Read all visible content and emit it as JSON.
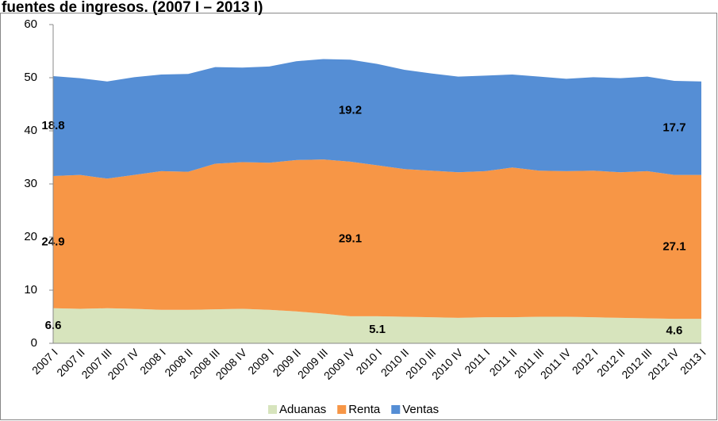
{
  "chart_data": {
    "type": "stacked-area",
    "title": "fuentes de ingresos. (2007 I – 2013 I)",
    "categories": [
      "2007 I",
      "2007 II",
      "2007 III",
      "2007 IV",
      "2008 I",
      "2008 II",
      "2008 III",
      "2008 IV",
      "2009 I",
      "2009 II",
      "2009 III",
      "2009 IV",
      "2010 I",
      "2010 II",
      "2010 III",
      "2010 IV",
      "2011 I",
      "2011 II",
      "2011 III",
      "2011 IV",
      "2012 I",
      "2012 II",
      "2012 III",
      "2012 IV",
      "2013 I"
    ],
    "series": [
      {
        "name": "Aduanas",
        "color": "#d7e4bd",
        "values": [
          6.6,
          6.5,
          6.6,
          6.5,
          6.3,
          6.3,
          6.4,
          6.5,
          6.3,
          6.0,
          5.6,
          5.1,
          5.1,
          5.0,
          4.9,
          4.8,
          4.9,
          4.9,
          5.0,
          5.0,
          4.9,
          4.8,
          4.7,
          4.6,
          4.6
        ],
        "value_labels": [
          "6.6",
          null,
          null,
          null,
          null,
          null,
          null,
          null,
          null,
          null,
          null,
          null,
          "5.1",
          null,
          null,
          null,
          null,
          null,
          null,
          null,
          null,
          null,
          null,
          "4.6",
          null
        ]
      },
      {
        "name": "Renta",
        "color": "#f79646",
        "values": [
          24.9,
          25.2,
          24.4,
          25.2,
          26.1,
          26.0,
          27.4,
          27.6,
          27.7,
          28.5,
          29.0,
          29.1,
          28.4,
          27.8,
          27.6,
          27.4,
          27.5,
          28.2,
          27.5,
          27.4,
          27.6,
          27.4,
          27.7,
          27.1,
          27.1
        ],
        "value_labels": [
          "24.9",
          null,
          null,
          null,
          null,
          null,
          null,
          null,
          null,
          null,
          null,
          "29.1",
          null,
          null,
          null,
          null,
          null,
          null,
          null,
          null,
          null,
          null,
          null,
          "27.1",
          null
        ]
      },
      {
        "name": "Ventas",
        "color": "#558ed5",
        "values": [
          18.8,
          18.2,
          18.3,
          18.4,
          18.2,
          18.4,
          18.2,
          17.8,
          18.1,
          18.6,
          18.9,
          19.2,
          19.1,
          18.7,
          18.3,
          18.0,
          18.0,
          17.5,
          17.7,
          17.4,
          17.6,
          17.7,
          17.8,
          17.7,
          17.6
        ],
        "value_labels": [
          "18.8",
          null,
          null,
          null,
          null,
          null,
          null,
          null,
          null,
          null,
          null,
          "19.2",
          null,
          null,
          null,
          null,
          null,
          null,
          null,
          null,
          null,
          null,
          null,
          "17.7",
          null
        ]
      }
    ],
    "ylim": [
      0,
      60
    ],
    "yticks": [
      0,
      10,
      20,
      30,
      40,
      50,
      60
    ],
    "grid": false,
    "legend": "bottom"
  }
}
